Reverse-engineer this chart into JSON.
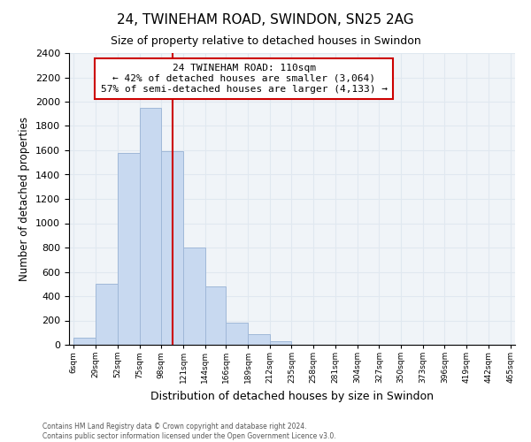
{
  "title": "24, TWINEHAM ROAD, SWINDON, SN25 2AG",
  "subtitle": "Size of property relative to detached houses in Swindon",
  "xlabel": "Distribution of detached houses by size in Swindon",
  "ylabel": "Number of detached properties",
  "footer_line1": "Contains HM Land Registry data © Crown copyright and database right 2024.",
  "footer_line2": "Contains public sector information licensed under the Open Government Licence v3.0.",
  "bar_edges": [
    6,
    29,
    52,
    75,
    98,
    121,
    144,
    166,
    189,
    212,
    235,
    258,
    281,
    304,
    327,
    350,
    373,
    396,
    419,
    442,
    465
  ],
  "bar_heights": [
    55,
    500,
    1575,
    1950,
    1590,
    800,
    480,
    185,
    90,
    30,
    0,
    0,
    0,
    0,
    0,
    0,
    0,
    0,
    0,
    0
  ],
  "bar_color": "#c8d9f0",
  "bar_edgecolor": "#a0b8d8",
  "vline_x": 110,
  "vline_color": "#cc0000",
  "annotation_title": "24 TWINEHAM ROAD: 110sqm",
  "annotation_line2": "← 42% of detached houses are smaller (3,064)",
  "annotation_line3": "57% of semi-detached houses are larger (4,133) →",
  "annotation_box_color": "#ffffff",
  "annotation_box_edgecolor": "#cc0000",
  "ylim": [
    0,
    2400
  ],
  "yticks": [
    0,
    200,
    400,
    600,
    800,
    1000,
    1200,
    1400,
    1600,
    1800,
    2000,
    2200,
    2400
  ],
  "xtick_labels": [
    "6sqm",
    "29sqm",
    "52sqm",
    "75sqm",
    "98sqm",
    "121sqm",
    "144sqm",
    "166sqm",
    "189sqm",
    "212sqm",
    "235sqm",
    "258sqm",
    "281sqm",
    "304sqm",
    "327sqm",
    "350sqm",
    "373sqm",
    "396sqm",
    "419sqm",
    "442sqm",
    "465sqm"
  ],
  "grid_color": "#e0e8f0",
  "background_color": "#ffffff",
  "plot_bg_color": "#f0f4f8"
}
